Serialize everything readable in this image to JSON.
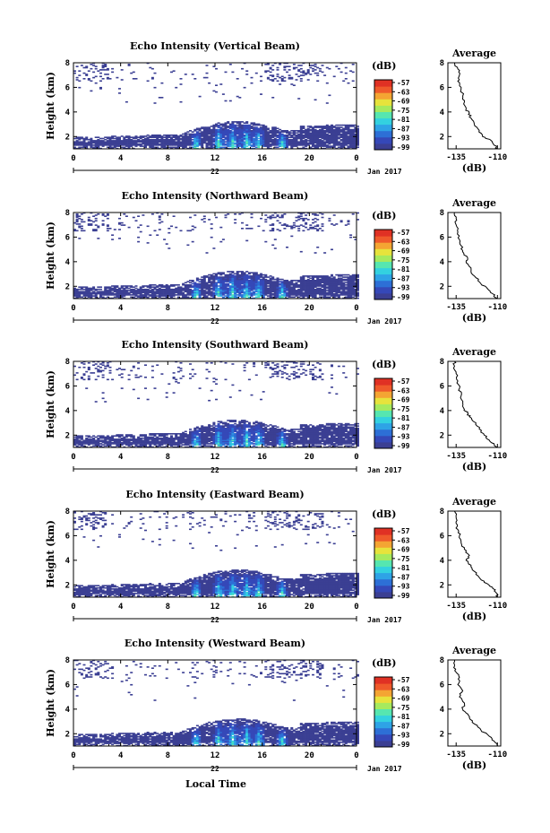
{
  "figure": {
    "xlabel": "Local Time",
    "date_label": "Jan 2017",
    "day_label": "22",
    "colorbar_unit": "(dB)",
    "average_title": "Average",
    "average_xlabel": "(dB)"
  },
  "chart_data": [
    {
      "type": "heatmap",
      "title": "Echo Intensity (Vertical Beam)",
      "ylabel": "Height (km)",
      "x_ticks": [
        "0",
        "4",
        "8",
        "12",
        "16",
        "20",
        "0"
      ],
      "y_ticks": [
        "2",
        "4",
        "6",
        "8"
      ],
      "xlim": [
        0,
        24
      ],
      "ylim": [
        1,
        8
      ],
      "colorbar_ticks": [
        "-57",
        "-63",
        "-69",
        "-75",
        "-81",
        "-87",
        "-93",
        "-99"
      ],
      "average_profile": {
        "x_ticks": [
          "-135",
          "-110"
        ],
        "y_ticks": [
          "2",
          "4",
          "6",
          "8"
        ],
        "xlim": [
          -140,
          -108
        ],
        "ylim": [
          1,
          8
        ],
        "dB": [
          -110,
          -112,
          -114,
          -119,
          -121,
          -124,
          -126,
          -127,
          -129,
          -130,
          -131,
          -132,
          -134,
          -133,
          -134,
          -136
        ],
        "height": [
          1.0,
          1.3,
          1.7,
          2.0,
          2.5,
          3.0,
          3.5,
          3.9,
          4.2,
          4.8,
          5.3,
          6.0,
          6.5,
          7.0,
          7.5,
          8.0
        ]
      }
    },
    {
      "type": "heatmap",
      "title": "Echo Intensity (Northward Beam)",
      "ylabel": "Height (km)",
      "x_ticks": [
        "0",
        "4",
        "8",
        "12",
        "16",
        "20",
        "0"
      ],
      "y_ticks": [
        "2",
        "4",
        "6",
        "8"
      ],
      "xlim": [
        0,
        24
      ],
      "ylim": [
        1,
        8
      ],
      "colorbar_ticks": [
        "-57",
        "-63",
        "-69",
        "-75",
        "-81",
        "-87",
        "-93",
        "-99"
      ],
      "average_profile": {
        "x_ticks": [
          "-135",
          "-110"
        ],
        "y_ticks": [
          "2",
          "4",
          "6",
          "8"
        ],
        "xlim": [
          -140,
          -108
        ],
        "ylim": [
          1,
          8
        ],
        "dB": [
          -110,
          -113,
          -116,
          -120,
          -123,
          -126,
          -127,
          -129,
          -128,
          -131,
          -132,
          -133,
          -134,
          -135,
          -135,
          -136
        ],
        "height": [
          1.0,
          1.4,
          1.8,
          2.2,
          2.7,
          3.2,
          3.6,
          4.0,
          4.3,
          4.8,
          5.3,
          5.8,
          6.4,
          7.0,
          7.5,
          8.0
        ]
      }
    },
    {
      "type": "heatmap",
      "title": "Echo Intensity (Southward Beam)",
      "ylabel": "Height (km)",
      "x_ticks": [
        "0",
        "4",
        "8",
        "12",
        "16",
        "20",
        "0"
      ],
      "y_ticks": [
        "2",
        "4",
        "6",
        "8"
      ],
      "xlim": [
        0,
        24
      ],
      "ylim": [
        1,
        8
      ],
      "colorbar_ticks": [
        "-57",
        "-63",
        "-69",
        "-75",
        "-81",
        "-87",
        "-93",
        "-99"
      ],
      "average_profile": {
        "x_ticks": [
          "-135",
          "-110"
        ],
        "y_ticks": [
          "2",
          "4",
          "6",
          "8"
        ],
        "xlim": [
          -140,
          -108
        ],
        "ylim": [
          1,
          8
        ],
        "dB": [
          -110,
          -112,
          -115,
          -118,
          -121,
          -123,
          -127,
          -128,
          -130,
          -131,
          -132,
          -133,
          -134,
          -135,
          -136,
          -136
        ],
        "height": [
          1.0,
          1.3,
          1.6,
          2.0,
          2.5,
          3.0,
          3.5,
          3.8,
          4.1,
          4.6,
          5.2,
          5.8,
          6.4,
          7.0,
          7.6,
          8.0
        ]
      }
    },
    {
      "type": "heatmap",
      "title": "Echo Intensity (Eastward Beam)",
      "ylabel": "Height (km)",
      "x_ticks": [
        "0",
        "4",
        "8",
        "12",
        "16",
        "20",
        "0"
      ],
      "y_ticks": [
        "2",
        "4",
        "6",
        "8"
      ],
      "xlim": [
        0,
        24
      ],
      "ylim": [
        1,
        8
      ],
      "colorbar_ticks": [
        "-57",
        "-63",
        "-69",
        "-75",
        "-81",
        "-87",
        "-93",
        "-99"
      ],
      "average_profile": {
        "x_ticks": [
          "-135",
          "-110"
        ],
        "y_ticks": [
          "2",
          "4",
          "6",
          "8"
        ],
        "xlim": [
          -140,
          -108
        ],
        "ylim": [
          1,
          8
        ],
        "dB": [
          -110,
          -111,
          -113,
          -118,
          -121,
          -124,
          -126,
          -129,
          -127,
          -130,
          -132,
          -133,
          -134,
          -135,
          -135,
          -136
        ],
        "height": [
          1.0,
          1.4,
          1.8,
          2.2,
          2.6,
          3.1,
          3.6,
          4.0,
          4.4,
          4.9,
          5.4,
          6.0,
          6.5,
          7.0,
          7.5,
          8.0
        ]
      }
    },
    {
      "type": "heatmap",
      "title": "Echo Intensity (Westward Beam)",
      "ylabel": "Height (km)",
      "x_ticks": [
        "0",
        "4",
        "8",
        "12",
        "16",
        "20",
        "0"
      ],
      "y_ticks": [
        "2",
        "4",
        "6",
        "8"
      ],
      "xlim": [
        0,
        24
      ],
      "ylim": [
        1,
        8
      ],
      "colorbar_ticks": [
        "-57",
        "-63",
        "-69",
        "-75",
        "-81",
        "-87",
        "-93",
        "-99"
      ],
      "average_profile": {
        "x_ticks": [
          "-135",
          "-110"
        ],
        "y_ticks": [
          "2",
          "4",
          "6",
          "8"
        ],
        "xlim": [
          -140,
          -108
        ],
        "ylim": [
          1,
          8
        ],
        "dB": [
          -110,
          -112,
          -115,
          -120,
          -124,
          -127,
          -128,
          -131,
          -130,
          -133,
          -131,
          -134,
          -133,
          -135,
          -136,
          -136
        ],
        "height": [
          1.0,
          1.4,
          1.8,
          2.3,
          2.8,
          3.3,
          3.6,
          4.0,
          4.5,
          5.0,
          5.5,
          6.0,
          6.6,
          7.0,
          7.5,
          8.0
        ]
      }
    }
  ],
  "colormap": [
    "#3b3f93",
    "#3548b8",
    "#2d6fd6",
    "#2ea3e6",
    "#33d1e0",
    "#56e6b0",
    "#a6ea5e",
    "#e7e33c",
    "#f4a533",
    "#ef5a2b",
    "#e03124"
  ]
}
